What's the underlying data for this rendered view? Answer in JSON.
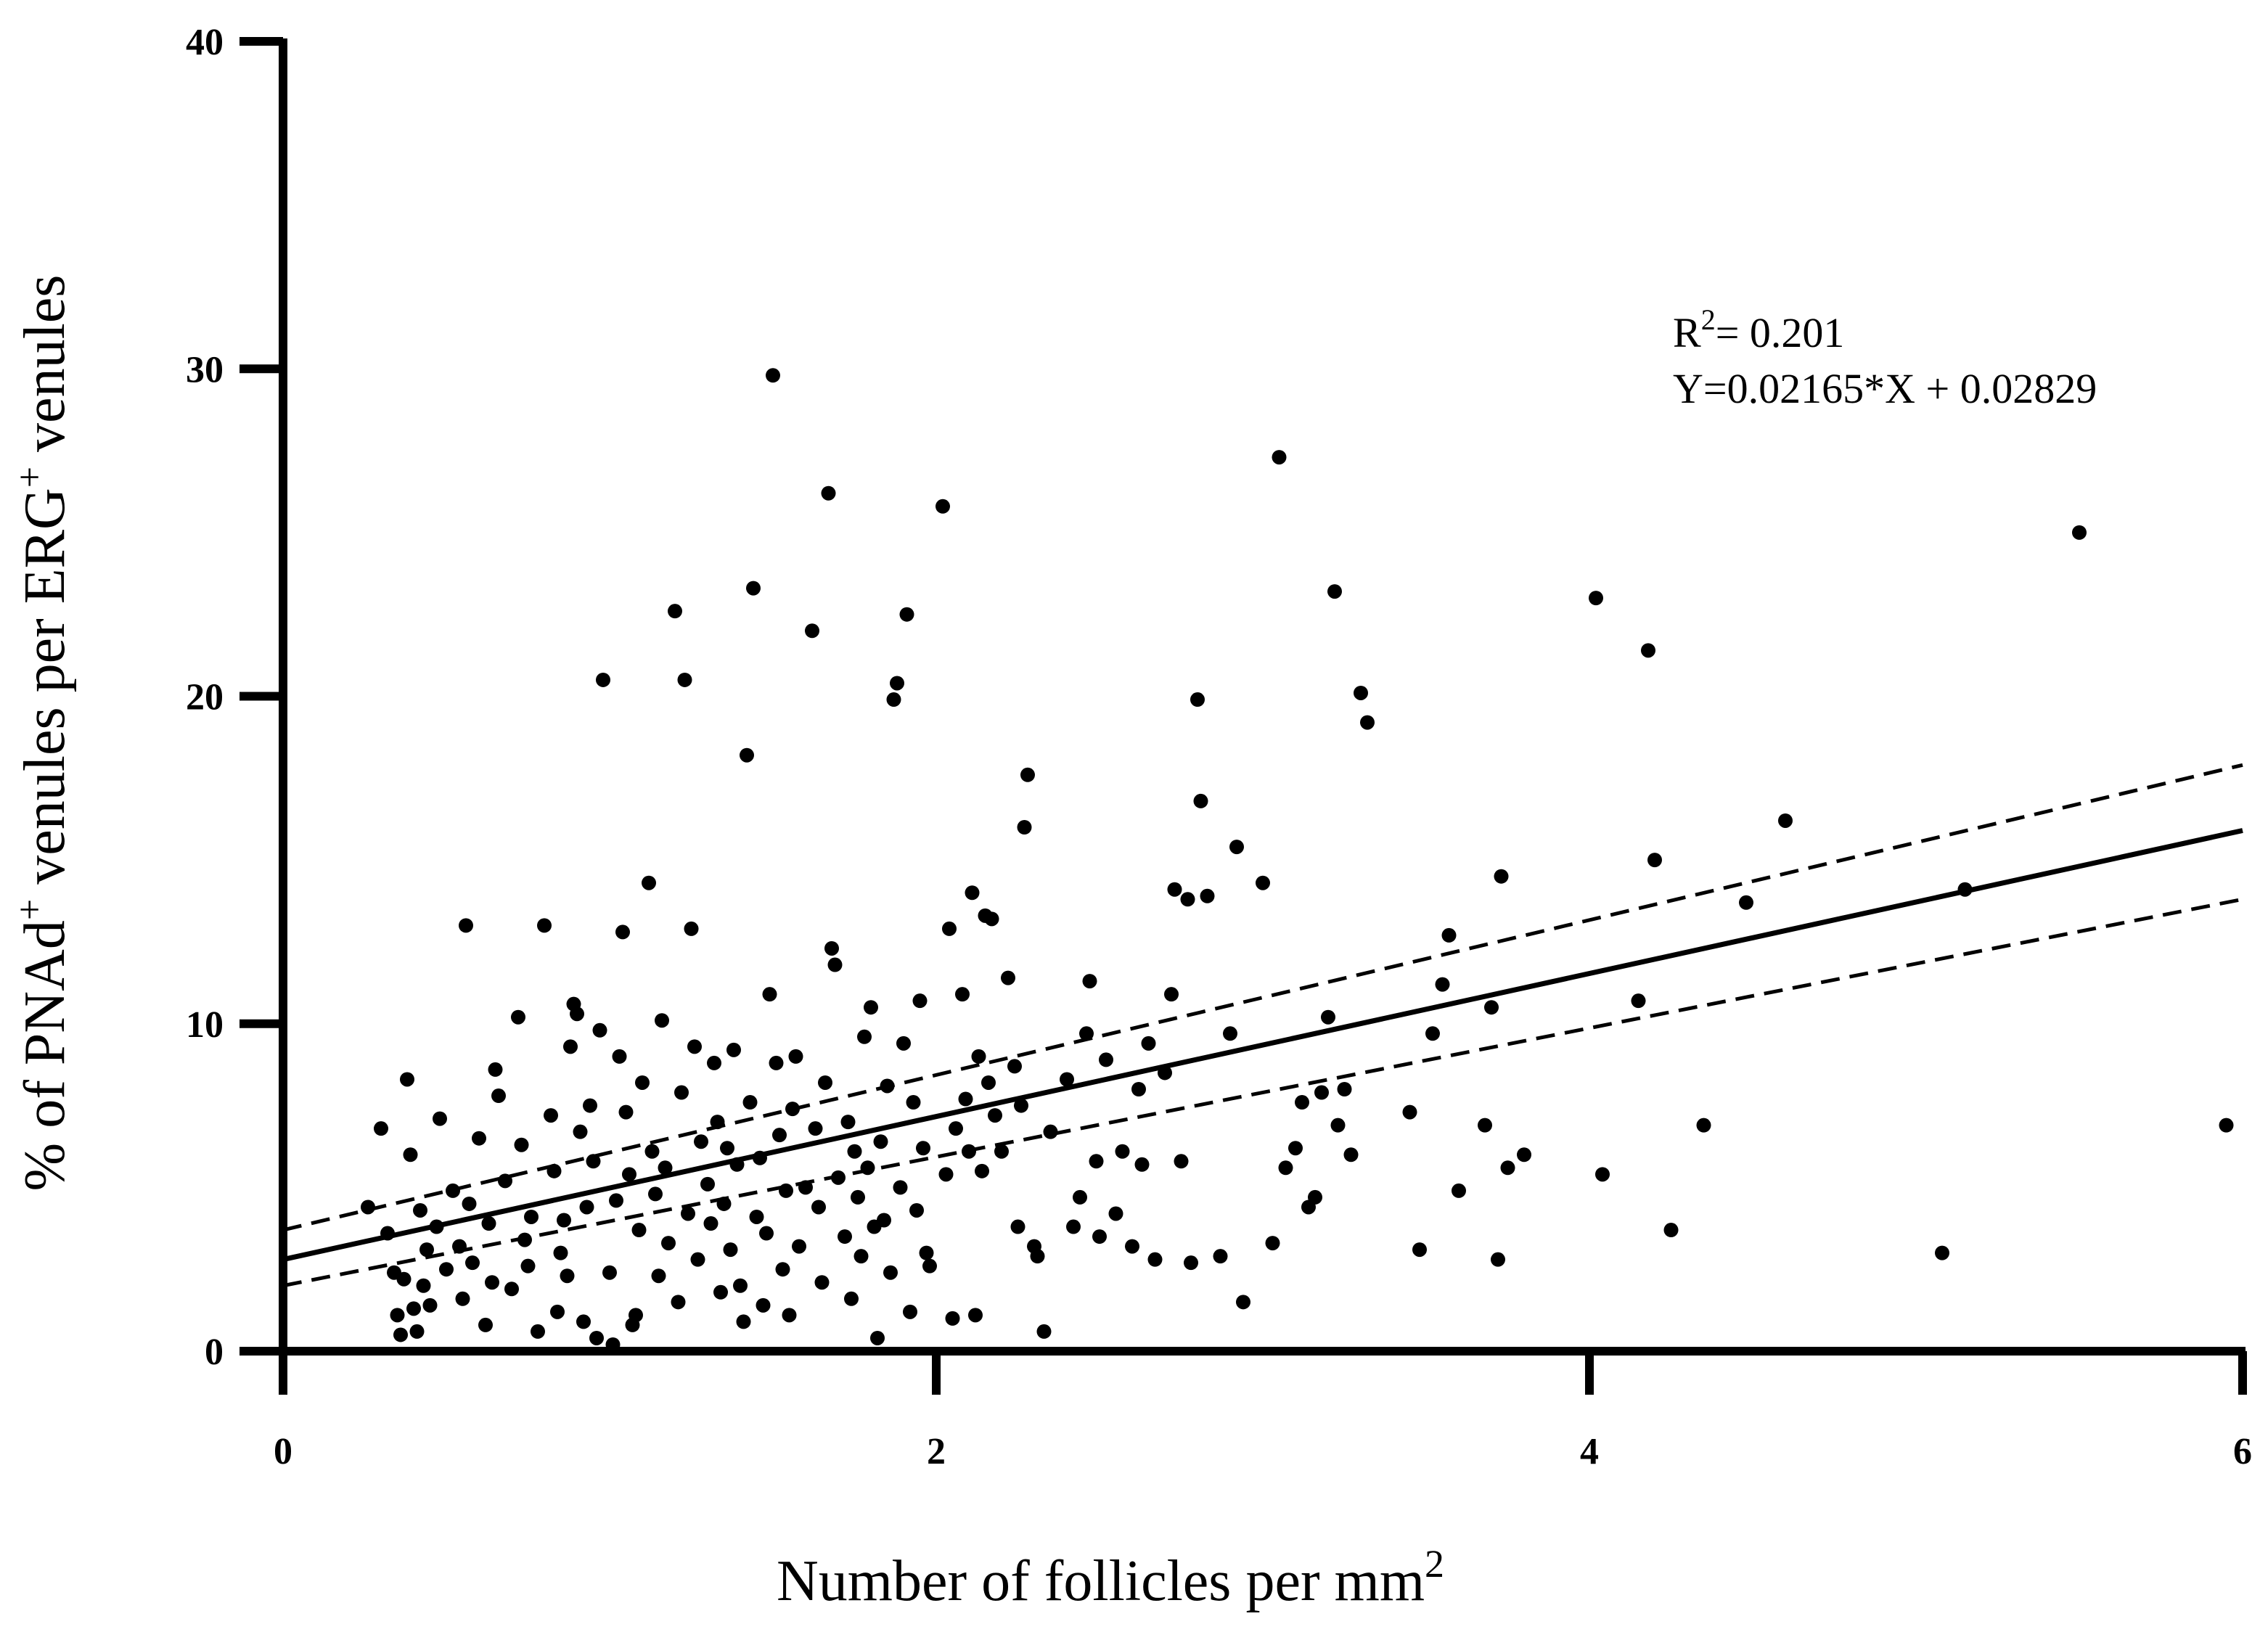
{
  "chart_data": {
    "type": "scatter",
    "title": "",
    "xlabel": "Number of follicles per mm",
    "xlabel_sup": "2",
    "ylabel_parts": [
      "% of PNAd",
      "+",
      " venules per ERG",
      "+",
      " venules"
    ],
    "xlim": [
      0,
      6
    ],
    "ylim": [
      0,
      40
    ],
    "xticks": [
      0,
      2,
      4,
      6
    ],
    "xtick_labels": [
      "0",
      "2",
      "4",
      "6"
    ],
    "yticks": [
      0,
      10,
      20,
      30,
      40
    ],
    "ytick_labels": [
      "0",
      "10",
      "20",
      "30",
      "40"
    ],
    "grid": false,
    "annotations": {
      "r2_prefix": "R",
      "r2_sup": "2",
      "r2_value": "= 0.201",
      "equation": "Y=0.02165*X + 0.02829"
    },
    "regression": {
      "line": [
        [
          0,
          2.8
        ],
        [
          6,
          15.9
        ]
      ],
      "ci_upper": [
        [
          0,
          3.7
        ],
        [
          6,
          17.9
        ]
      ],
      "ci_lower": [
        [
          0,
          2.0
        ],
        [
          6,
          13.8
        ]
      ]
    },
    "series": [
      {
        "points": [
          [
            0.26,
            4.4
          ],
          [
            0.3,
            6.8
          ],
          [
            0.32,
            3.6
          ],
          [
            0.34,
            2.4
          ],
          [
            0.35,
            1.1
          ],
          [
            0.36,
            0.5
          ],
          [
            0.37,
            2.2
          ],
          [
            0.38,
            8.3
          ],
          [
            0.39,
            6.0
          ],
          [
            0.4,
            1.3
          ],
          [
            0.41,
            0.6
          ],
          [
            0.42,
            4.3
          ],
          [
            0.43,
            2.0
          ],
          [
            0.44,
            3.1
          ],
          [
            0.45,
            1.4
          ],
          [
            0.47,
            3.8
          ],
          [
            0.48,
            7.1
          ],
          [
            0.5,
            2.5
          ],
          [
            0.52,
            4.9
          ],
          [
            0.54,
            3.2
          ],
          [
            0.55,
            1.6
          ],
          [
            0.56,
            13.0
          ],
          [
            0.57,
            4.5
          ],
          [
            0.58,
            2.7
          ],
          [
            0.6,
            6.5
          ],
          [
            0.62,
            0.8
          ],
          [
            0.63,
            3.9
          ],
          [
            0.64,
            2.1
          ],
          [
            0.65,
            8.6
          ],
          [
            0.66,
            7.8
          ],
          [
            0.68,
            5.2
          ],
          [
            0.7,
            1.9
          ],
          [
            0.72,
            10.2
          ],
          [
            0.73,
            6.3
          ],
          [
            0.74,
            3.4
          ],
          [
            0.75,
            2.6
          ],
          [
            0.76,
            4.1
          ],
          [
            0.78,
            0.6
          ],
          [
            0.8,
            13.0
          ],
          [
            0.82,
            7.2
          ],
          [
            0.83,
            5.5
          ],
          [
            0.84,
            1.2
          ],
          [
            0.85,
            3.0
          ],
          [
            0.86,
            4.0
          ],
          [
            0.87,
            2.3
          ],
          [
            0.88,
            9.3
          ],
          [
            0.89,
            10.6
          ],
          [
            0.9,
            10.3
          ],
          [
            0.91,
            6.7
          ],
          [
            0.92,
            0.9
          ],
          [
            0.93,
            4.4
          ],
          [
            0.94,
            7.5
          ],
          [
            0.95,
            5.8
          ],
          [
            0.96,
            0.4
          ],
          [
            0.97,
            9.8
          ],
          [
            0.98,
            20.5
          ],
          [
            1.0,
            2.4
          ],
          [
            1.01,
            0.2
          ],
          [
            1.02,
            4.6
          ],
          [
            1.03,
            9.0
          ],
          [
            1.04,
            12.8
          ],
          [
            1.05,
            7.3
          ],
          [
            1.06,
            5.4
          ],
          [
            1.07,
            0.8
          ],
          [
            1.08,
            1.1
          ],
          [
            1.09,
            3.7
          ],
          [
            1.1,
            8.2
          ],
          [
            1.12,
            14.3
          ],
          [
            1.13,
            6.1
          ],
          [
            1.14,
            4.8
          ],
          [
            1.15,
            2.3
          ],
          [
            1.16,
            10.1
          ],
          [
            1.17,
            5.6
          ],
          [
            1.18,
            3.3
          ],
          [
            1.2,
            22.6
          ],
          [
            1.21,
            1.5
          ],
          [
            1.22,
            7.9
          ],
          [
            1.23,
            20.5
          ],
          [
            1.24,
            4.2
          ],
          [
            1.25,
            12.9
          ],
          [
            1.26,
            9.3
          ],
          [
            1.27,
            2.8
          ],
          [
            1.28,
            6.4
          ],
          [
            1.3,
            5.1
          ],
          [
            1.31,
            3.9
          ],
          [
            1.32,
            8.8
          ],
          [
            1.33,
            7.0
          ],
          [
            1.34,
            1.8
          ],
          [
            1.35,
            4.5
          ],
          [
            1.36,
            6.2
          ],
          [
            1.37,
            3.1
          ],
          [
            1.38,
            9.2
          ],
          [
            1.39,
            5.7
          ],
          [
            1.4,
            2.0
          ],
          [
            1.41,
            0.9
          ],
          [
            1.42,
            18.2
          ],
          [
            1.43,
            7.6
          ],
          [
            1.44,
            23.3
          ],
          [
            1.45,
            4.1
          ],
          [
            1.46,
            5.9
          ],
          [
            1.47,
            1.4
          ],
          [
            1.48,
            3.6
          ],
          [
            1.49,
            10.9
          ],
          [
            1.5,
            29.8
          ],
          [
            1.51,
            8.8
          ],
          [
            1.52,
            6.6
          ],
          [
            1.53,
            2.5
          ],
          [
            1.54,
            4.9
          ],
          [
            1.55,
            1.1
          ],
          [
            1.56,
            7.4
          ],
          [
            1.57,
            9.0
          ],
          [
            1.58,
            3.2
          ],
          [
            1.6,
            5.0
          ],
          [
            1.62,
            22.0
          ],
          [
            1.63,
            6.8
          ],
          [
            1.64,
            4.4
          ],
          [
            1.65,
            2.1
          ],
          [
            1.66,
            8.2
          ],
          [
            1.67,
            26.2
          ],
          [
            1.68,
            12.3
          ],
          [
            1.69,
            11.8
          ],
          [
            1.7,
            5.3
          ],
          [
            1.72,
            3.5
          ],
          [
            1.73,
            7.0
          ],
          [
            1.74,
            1.6
          ],
          [
            1.75,
            6.1
          ],
          [
            1.76,
            4.7
          ],
          [
            1.77,
            2.9
          ],
          [
            1.78,
            9.6
          ],
          [
            1.79,
            5.6
          ],
          [
            1.8,
            10.5
          ],
          [
            1.81,
            3.8
          ],
          [
            1.82,
            0.4
          ],
          [
            1.83,
            6.4
          ],
          [
            1.84,
            4.0
          ],
          [
            1.85,
            8.1
          ],
          [
            1.86,
            2.4
          ],
          [
            1.87,
            19.9
          ],
          [
            1.88,
            20.4
          ],
          [
            1.89,
            5.0
          ],
          [
            1.9,
            9.4
          ],
          [
            1.91,
            22.5
          ],
          [
            1.92,
            1.2
          ],
          [
            1.93,
            7.6
          ],
          [
            1.94,
            4.3
          ],
          [
            1.95,
            10.7
          ],
          [
            1.96,
            6.2
          ],
          [
            1.97,
            3.0
          ],
          [
            1.98,
            2.6
          ],
          [
            2.02,
            25.8
          ],
          [
            2.03,
            5.4
          ],
          [
            2.04,
            12.9
          ],
          [
            2.05,
            1.0
          ],
          [
            2.06,
            6.8
          ],
          [
            2.08,
            10.9
          ],
          [
            2.09,
            7.7
          ],
          [
            2.1,
            6.1
          ],
          [
            2.11,
            14.0
          ],
          [
            2.12,
            1.1
          ],
          [
            2.13,
            9.0
          ],
          [
            2.14,
            5.5
          ],
          [
            2.15,
            13.3
          ],
          [
            2.16,
            8.2
          ],
          [
            2.17,
            13.2
          ],
          [
            2.18,
            7.2
          ],
          [
            2.2,
            6.1
          ],
          [
            2.22,
            11.4
          ],
          [
            2.24,
            8.7
          ],
          [
            2.25,
            3.8
          ],
          [
            2.26,
            7.5
          ],
          [
            2.27,
            16.0
          ],
          [
            2.28,
            17.6
          ],
          [
            2.3,
            3.2
          ],
          [
            2.31,
            2.9
          ],
          [
            2.33,
            0.6
          ],
          [
            2.35,
            6.7
          ],
          [
            2.4,
            8.3
          ],
          [
            2.42,
            3.8
          ],
          [
            2.44,
            4.7
          ],
          [
            2.46,
            9.7
          ],
          [
            2.47,
            11.3
          ],
          [
            2.49,
            5.8
          ],
          [
            2.5,
            3.5
          ],
          [
            2.52,
            8.9
          ],
          [
            2.55,
            4.2
          ],
          [
            2.57,
            6.1
          ],
          [
            2.6,
            3.2
          ],
          [
            2.62,
            8.0
          ],
          [
            2.63,
            5.7
          ],
          [
            2.65,
            9.4
          ],
          [
            2.67,
            2.8
          ],
          [
            2.7,
            8.5
          ],
          [
            2.72,
            10.9
          ],
          [
            2.73,
            14.1
          ],
          [
            2.75,
            5.8
          ],
          [
            2.77,
            13.8
          ],
          [
            2.78,
            2.7
          ],
          [
            2.8,
            19.9
          ],
          [
            2.81,
            16.8
          ],
          [
            2.83,
            13.9
          ],
          [
            2.87,
            2.9
          ],
          [
            2.9,
            9.7
          ],
          [
            2.92,
            15.4
          ],
          [
            2.94,
            1.5
          ],
          [
            3.0,
            14.3
          ],
          [
            3.03,
            3.3
          ],
          [
            3.05,
            27.3
          ],
          [
            3.07,
            5.6
          ],
          [
            3.1,
            6.2
          ],
          [
            3.12,
            7.6
          ],
          [
            3.14,
            4.4
          ],
          [
            3.16,
            4.7
          ],
          [
            3.18,
            7.9
          ],
          [
            3.2,
            10.2
          ],
          [
            3.22,
            23.2
          ],
          [
            3.23,
            6.9
          ],
          [
            3.25,
            8.0
          ],
          [
            3.27,
            6.0
          ],
          [
            3.3,
            20.1
          ],
          [
            3.32,
            19.2
          ],
          [
            3.45,
            7.3
          ],
          [
            3.48,
            3.1
          ],
          [
            3.52,
            9.7
          ],
          [
            3.55,
            11.2
          ],
          [
            3.57,
            12.7
          ],
          [
            3.6,
            4.9
          ],
          [
            3.68,
            6.9
          ],
          [
            3.7,
            10.5
          ],
          [
            3.72,
            2.8
          ],
          [
            3.73,
            14.5
          ],
          [
            3.75,
            5.6
          ],
          [
            3.8,
            6.0
          ],
          [
            4.02,
            23.0
          ],
          [
            4.04,
            5.4
          ],
          [
            4.15,
            10.7
          ],
          [
            4.18,
            21.4
          ],
          [
            4.2,
            15.0
          ],
          [
            4.25,
            3.7
          ],
          [
            4.35,
            6.9
          ],
          [
            4.48,
            13.7
          ],
          [
            4.6,
            16.2
          ],
          [
            5.08,
            3.0
          ],
          [
            5.15,
            14.1
          ],
          [
            5.5,
            25.0
          ],
          [
            5.95,
            6.9
          ]
        ]
      }
    ]
  }
}
